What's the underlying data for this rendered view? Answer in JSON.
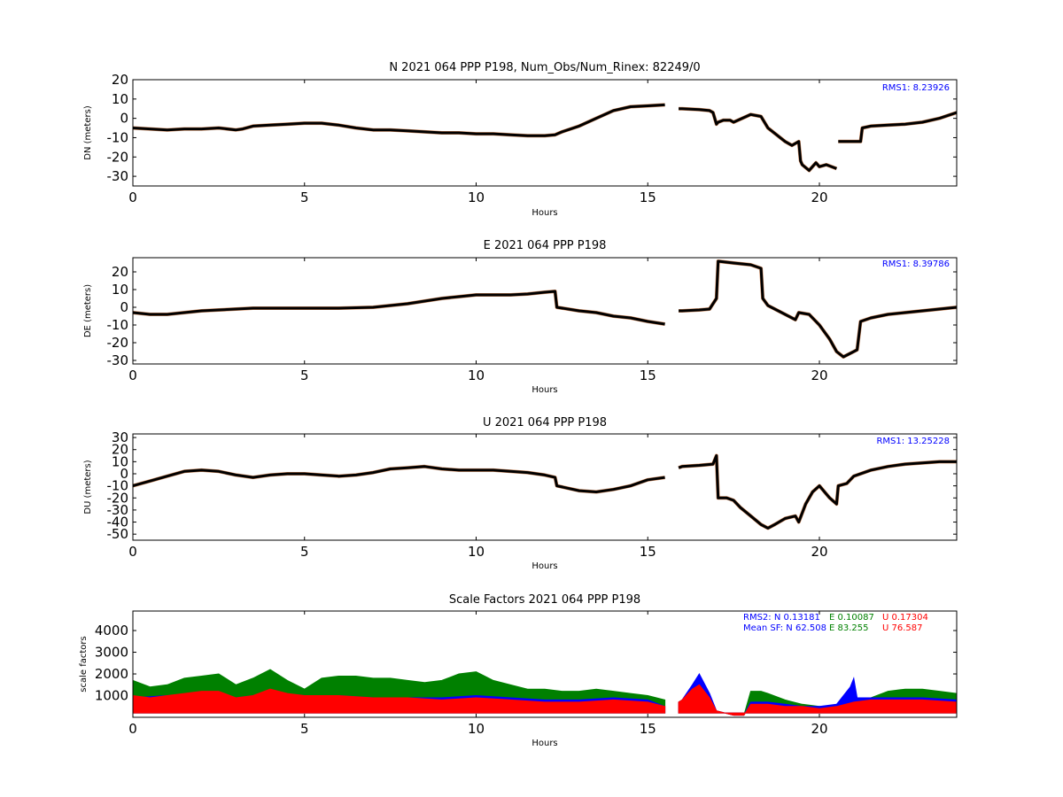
{
  "colors": {
    "series_main": "#000000",
    "series_outlier": "#d2885a",
    "sf_n": "#0000ff",
    "sf_e": "#008000",
    "sf_u": "#ff0000"
  },
  "chart_data": [
    {
      "type": "scatter",
      "title": "N 2021 064 PPP  P198, Num_Obs/Num_Rinex: 82249/0",
      "xlabel": "Hours",
      "ylabel": "DN (meters)",
      "xlim": [
        0,
        24
      ],
      "ylim": [
        -35,
        20
      ],
      "xticks": [
        0,
        5,
        10,
        15,
        20
      ],
      "yticks": [
        -30,
        -20,
        -10,
        0,
        10,
        20
      ],
      "annotation": "RMS1:  8.23926",
      "series": [
        {
          "x": [
            0,
            0.5,
            1,
            1.5,
            2,
            2.5,
            3,
            3.2,
            3.5,
            4,
            4.5,
            5,
            5.5,
            6,
            6.5,
            7,
            7.5,
            8,
            8.5,
            9,
            9.5,
            10,
            10.5,
            11,
            11.5,
            12,
            12.3,
            12.5,
            13,
            13.5,
            14,
            14.5,
            15,
            15.5,
            null,
            15.9,
            16,
            16.5,
            16.8,
            16.9,
            17,
            17.05,
            17.2,
            17.4,
            17.5,
            18,
            18.3,
            18.5,
            19,
            19.2,
            19.4,
            19.45,
            19.5,
            19.7,
            19.9,
            20,
            20.2,
            20.5,
            null,
            20.55,
            21.2,
            21.25,
            21.5,
            22,
            22.5,
            23,
            23.5,
            24
          ],
          "y": [
            -5,
            -5.5,
            -6,
            -5.5,
            -5.5,
            -5,
            -6,
            -5.5,
            -4,
            -3.5,
            -3,
            -2.5,
            -2.5,
            -3.5,
            -5,
            -6,
            -6,
            -6.5,
            -7,
            -7.5,
            -7.5,
            -8,
            -8,
            -8.5,
            -9,
            -9,
            -8.5,
            -7,
            -4,
            0,
            4,
            6,
            6.5,
            7,
            null,
            5,
            5,
            4.5,
            4,
            3,
            -3,
            -2,
            -1,
            -1,
            -2,
            2,
            1,
            -5,
            -12,
            -14,
            -12,
            -22,
            -24,
            -27,
            -23,
            -25,
            -24,
            -26,
            null,
            -12,
            -12,
            -5,
            -4,
            -3.5,
            -3,
            -2,
            0,
            3
          ]
        }
      ]
    },
    {
      "type": "scatter",
      "title": "E 2021 064 PPP  P198",
      "xlabel": "Hours",
      "ylabel": "DE (meters)",
      "xlim": [
        0,
        24
      ],
      "ylim": [
        -32,
        28
      ],
      "xticks": [
        0,
        5,
        10,
        15,
        20
      ],
      "yticks": [
        -30,
        -20,
        -10,
        0,
        10,
        20
      ],
      "annotation": "RMS1:  8.39786",
      "series": [
        {
          "x": [
            0,
            0.5,
            1,
            1.5,
            2,
            2.5,
            3,
            3.5,
            4,
            5,
            6,
            7,
            8,
            8.5,
            9,
            9.5,
            10,
            10.5,
            11,
            11.5,
            12,
            12.3,
            12.35,
            13,
            13.5,
            14,
            14.5,
            15,
            15.5,
            null,
            15.9,
            16,
            16.5,
            16.8,
            17,
            17.05,
            17.5,
            18,
            18.3,
            18.35,
            18.5,
            19,
            19.3,
            19.4,
            19.7,
            20,
            20.3,
            20.5,
            20.7,
            21,
            21.1,
            21.2,
            21.5,
            22,
            22.5,
            23,
            23.5,
            24
          ],
          "y": [
            -3,
            -4,
            -4,
            -3,
            -2,
            -1.5,
            -1,
            -0.5,
            -0.5,
            -0.5,
            -0.5,
            0,
            2,
            3.5,
            5,
            6,
            7,
            7,
            7,
            7.5,
            8.5,
            9,
            0,
            -2,
            -3,
            -5,
            -6,
            -8,
            -9.5,
            null,
            -2,
            -2,
            -1.5,
            -1,
            5,
            26,
            25,
            24,
            22,
            5,
            1,
            -4,
            -7,
            -3,
            -4,
            -10,
            -18,
            -25,
            -28,
            -25,
            -24,
            -8,
            -6,
            -4,
            -3,
            -2,
            -1,
            0
          ]
        }
      ]
    },
    {
      "type": "scatter",
      "title": "U 2021 064 PPP  P198",
      "xlabel": "Hours",
      "ylabel": "DU (meters)",
      "xlim": [
        0,
        24
      ],
      "ylim": [
        -55,
        33
      ],
      "xticks": [
        0,
        5,
        10,
        15,
        20
      ],
      "yticks": [
        -50,
        -40,
        -30,
        -20,
        -10,
        0,
        10,
        20,
        30
      ],
      "annotation": "RMS1: 13.25228",
      "series": [
        {
          "x": [
            0,
            0.5,
            1,
            1.5,
            2,
            2.5,
            3,
            3.5,
            4,
            4.5,
            5,
            5.5,
            6,
            6.5,
            7,
            7.5,
            8,
            8.5,
            9,
            9.5,
            10,
            10.5,
            11,
            11.5,
            12,
            12.3,
            12.35,
            13,
            13.5,
            14,
            14.5,
            15,
            15.5,
            null,
            15.9,
            16,
            16.5,
            16.9,
            17,
            17.05,
            17.3,
            17.5,
            17.7,
            18,
            18.3,
            18.5,
            18.7,
            19,
            19.3,
            19.4,
            19.6,
            19.8,
            20,
            20.3,
            20.5,
            20.55,
            20.8,
            21,
            21.5,
            22,
            22.5,
            23,
            23.5,
            24
          ],
          "y": [
            -10,
            -6,
            -2,
            2,
            3,
            2,
            -1,
            -3,
            -1,
            0,
            0,
            -1,
            -2,
            -1,
            1,
            4,
            5,
            6,
            4,
            3,
            3,
            3,
            2,
            1,
            -1,
            -3,
            -10,
            -14,
            -15,
            -13,
            -10,
            -5,
            -3,
            null,
            5,
            6,
            7,
            8,
            15,
            -20,
            -20,
            -22,
            -28,
            -35,
            -42,
            -45,
            -42,
            -37,
            -35,
            -40,
            -25,
            -15,
            -10,
            -20,
            -25,
            -10,
            -8,
            -2,
            3,
            6,
            8,
            9,
            10,
            10
          ]
        }
      ]
    },
    {
      "type": "scatter",
      "title": "Scale Factors 2021 064 PPP  P198",
      "xlabel": "Hours",
      "ylabel": "scale factors",
      "xlim": [
        0,
        24
      ],
      "ylim": [
        0,
        4900
      ],
      "xticks": [
        0,
        5,
        10,
        15,
        20
      ],
      "yticks": [
        1000,
        2000,
        3000,
        4000
      ],
      "annotation_lines": [
        [
          {
            "text": "RMS2: N  0.13181",
            "color": "#0000ff"
          },
          {
            "text": "E  0.10087",
            "color": "#008000"
          },
          {
            "text": "U  0.17304",
            "color": "#ff0000"
          }
        ],
        [
          {
            "text": "Mean SF: N  62.508",
            "color": "#0000ff"
          },
          {
            "text": "E  83.255",
            "color": "#008000"
          },
          {
            "text": "U  76.587",
            "color": "#ff0000"
          }
        ]
      ],
      "series": [
        {
          "key": "E",
          "x": [
            0,
            0.5,
            1,
            1.5,
            2,
            2.5,
            3,
            3.5,
            4,
            4.5,
            5,
            5.5,
            6,
            6.5,
            7,
            7.5,
            8,
            8.5,
            9,
            9.5,
            10,
            10.5,
            11,
            11.5,
            12,
            12.5,
            13,
            13.5,
            14,
            14.5,
            15,
            15.5,
            null,
            15.9,
            16,
            16.3,
            16.5,
            16.8,
            17,
            17.5,
            17.8,
            18,
            18.3,
            18.5,
            19,
            19.5,
            20,
            20.5,
            21,
            21.5,
            22,
            22.5,
            23,
            23.5,
            24
          ],
          "y": [
            1700,
            1400,
            1500,
            1800,
            1900,
            2000,
            1500,
            1800,
            2200,
            1700,
            1300,
            1800,
            1900,
            1900,
            1800,
            1800,
            1700,
            1600,
            1700,
            2000,
            2100,
            1700,
            1500,
            1300,
            1300,
            1200,
            1200,
            1300,
            1200,
            1100,
            1000,
            800,
            null,
            700,
            800,
            1000,
            900,
            700,
            300,
            100,
            100,
            1200,
            1200,
            1100,
            800,
            600,
            500,
            500,
            700,
            900,
            1200,
            1300,
            1300,
            1200,
            1100
          ]
        },
        {
          "key": "N",
          "x": [
            0,
            1,
            2,
            3,
            4,
            5,
            6,
            7,
            8,
            9,
            10,
            11,
            12,
            13,
            14,
            15,
            15.5,
            null,
            15.9,
            16,
            16.3,
            16.5,
            16.8,
            17,
            17.5,
            17.8,
            18,
            18.5,
            19,
            19.5,
            20,
            20.5,
            20.9,
            21,
            21.1,
            21.5,
            22,
            23,
            24
          ],
          "y": [
            900,
            1000,
            1100,
            900,
            1100,
            1000,
            1000,
            900,
            900,
            900,
            1000,
            900,
            800,
            800,
            900,
            800,
            500,
            null,
            700,
            800,
            1500,
            2000,
            1100,
            300,
            100,
            100,
            700,
            700,
            600,
            500,
            500,
            600,
            1400,
            1800,
            900,
            900,
            900,
            900,
            800
          ]
        },
        {
          "key": "U",
          "x": [
            0,
            0.5,
            1,
            1.5,
            2,
            2.5,
            3,
            3.5,
            4,
            4.5,
            5,
            5.5,
            6,
            7,
            8,
            9,
            10,
            11,
            12,
            13,
            14,
            15,
            15.5,
            null,
            15.9,
            16,
            16.3,
            16.5,
            16.8,
            17,
            17.5,
            17.8,
            18,
            18.5,
            19,
            19.5,
            20,
            20.5,
            21,
            21.5,
            22,
            23,
            24
          ],
          "y": [
            1000,
            900,
            1000,
            1100,
            1200,
            1200,
            900,
            1000,
            1300,
            1100,
            1000,
            1000,
            1000,
            900,
            900,
            800,
            900,
            800,
            700,
            700,
            800,
            700,
            500,
            null,
            700,
            800,
            1300,
            1500,
            900,
            300,
            100,
            100,
            600,
            600,
            500,
            500,
            400,
            500,
            700,
            800,
            800,
            800,
            700
          ]
        }
      ]
    }
  ]
}
